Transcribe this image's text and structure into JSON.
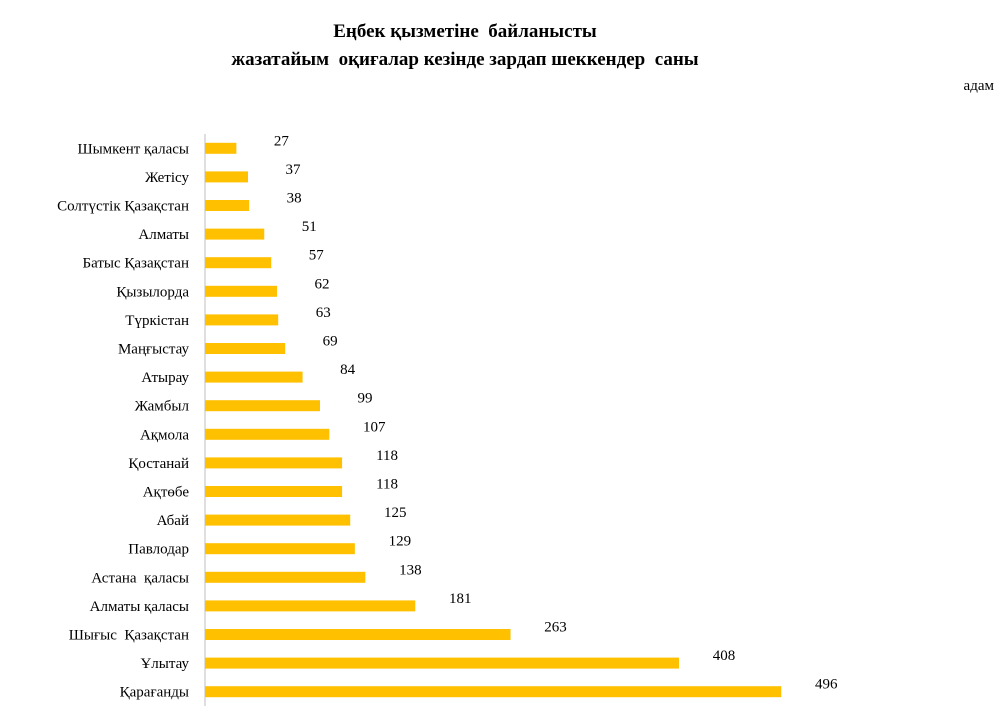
{
  "chart_data": {
    "type": "bar",
    "orientation": "horizontal",
    "title": [
      "Еңбек қызметіне  байланысты",
      "жазатайым  оқиғалар кезінде зардап шеккендер  саны"
    ],
    "unit": "адам",
    "categories": [
      "Шымкент қаласы",
      "Жетісу",
      "Солтүстік Қазақстан",
      "Алматы",
      "Батыс Қазақстан",
      "Қызылорда",
      "Түркістан",
      "Маңғыстау",
      "Атырау",
      "Жамбыл",
      "Ақмола",
      "Қостанай",
      "Ақтөбе",
      "Абай",
      "Павлодар",
      "Астана  қаласы",
      "Алматы қаласы",
      "Шығыс  Қазақстан",
      "Ұлытау",
      "Қарағанды"
    ],
    "values": [
      27,
      37,
      38,
      51,
      57,
      62,
      63,
      69,
      84,
      99,
      107,
      118,
      118,
      125,
      129,
      138,
      181,
      263,
      408,
      496
    ],
    "bar_color": "#FFC000",
    "xlim": [
      0,
      680
    ],
    "grid": false,
    "legend": "none"
  }
}
